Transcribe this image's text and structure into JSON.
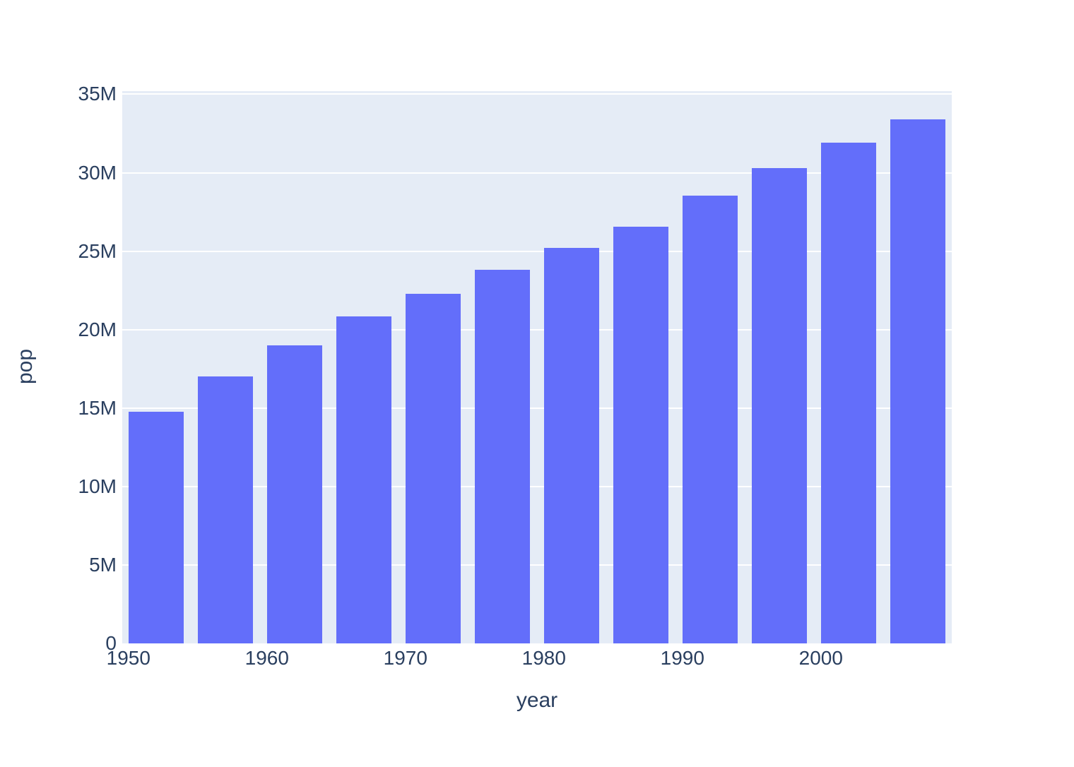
{
  "chart_data": {
    "type": "bar",
    "title": "",
    "xlabel": "year",
    "ylabel": "pop",
    "x": [
      1952,
      1957,
      1962,
      1967,
      1972,
      1977,
      1982,
      1987,
      1992,
      1997,
      2002,
      2007
    ],
    "values": [
      14785584,
      17010154,
      18985849,
      20819767,
      22284500,
      23796400,
      25201900,
      26549700,
      28523502,
      30305843,
      31902268,
      33390141
    ],
    "series_name": "pop",
    "xlim": [
      1949.55,
      2009.45
    ],
    "ylim": [
      0,
      35200000
    ],
    "y_ticks": [
      {
        "value": 0,
        "label": "0"
      },
      {
        "value": 5000000,
        "label": "5M"
      },
      {
        "value": 10000000,
        "label": "10M"
      },
      {
        "value": 15000000,
        "label": "15M"
      },
      {
        "value": 20000000,
        "label": "20M"
      },
      {
        "value": 25000000,
        "label": "25M"
      },
      {
        "value": 30000000,
        "label": "30M"
      },
      {
        "value": 35000000,
        "label": "35M"
      }
    ],
    "x_ticks": [
      {
        "value": 1950,
        "label": "1950"
      },
      {
        "value": 1960,
        "label": "1960"
      },
      {
        "value": 1970,
        "label": "1970"
      },
      {
        "value": 1980,
        "label": "1980"
      },
      {
        "value": 1990,
        "label": "1990"
      },
      {
        "value": 2000,
        "label": "2000"
      }
    ],
    "grid": "horizontal",
    "legend": "none",
    "colors": {
      "bar": "#636EFA",
      "plot_background": "#E5ECF6",
      "gridline": "#FFFFFF",
      "text": "#2A3F5F",
      "page_background": "#FFFFFF"
    }
  }
}
